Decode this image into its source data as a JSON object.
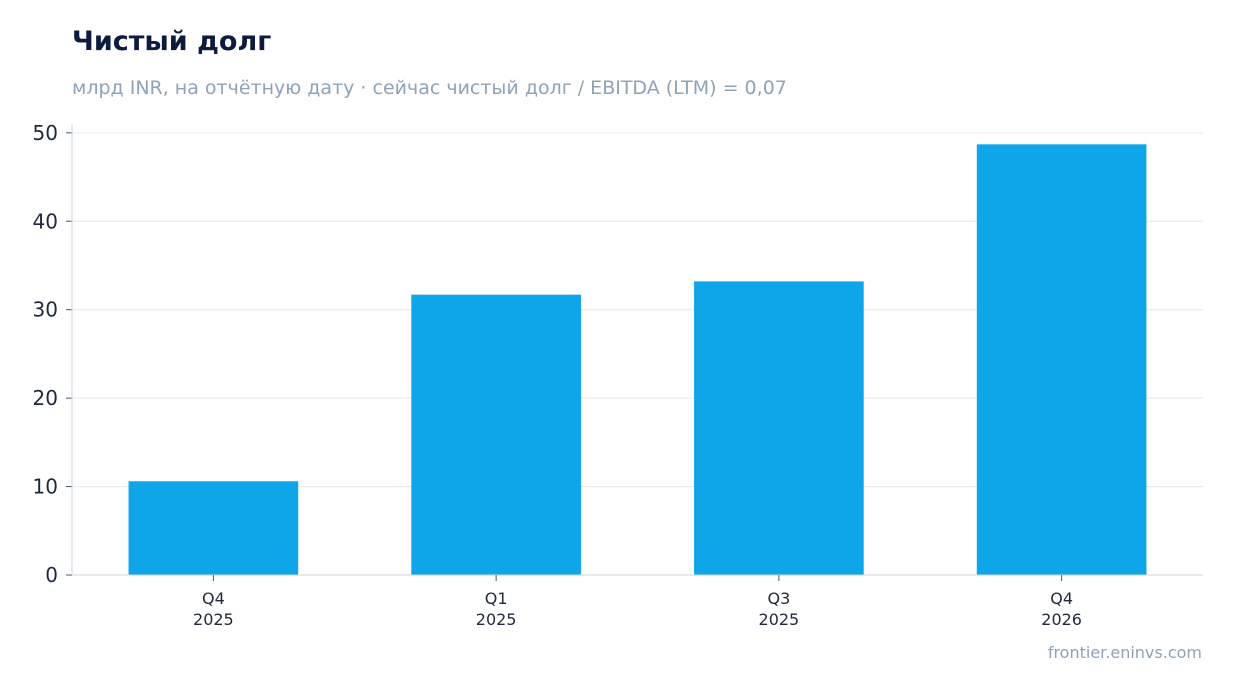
{
  "chart_data": {
    "type": "bar",
    "title": "Чистый долг",
    "subtitle": "млрд INR, на отчётную дату · сейчас чистый долг / EBITDA (LTM) = 0,07",
    "categories": [
      {
        "quarter": "Q4",
        "year": "2025"
      },
      {
        "quarter": "Q1",
        "year": "2025"
      },
      {
        "quarter": "Q3",
        "year": "2025"
      },
      {
        "quarter": "Q4",
        "year": "2026"
      }
    ],
    "values": [
      10.6,
      31.7,
      33.2,
      48.7
    ],
    "ylim": [
      0,
      51
    ],
    "yticks": [
      "0",
      "10",
      "20",
      "30",
      "40",
      "50"
    ],
    "grid": true,
    "legend": "none",
    "bar_color": "#0ea5e9",
    "grid_color": "#e2e8f0",
    "axis_color": "#cbd5e1"
  },
  "footer": {
    "source": "frontier.eninvs.com"
  }
}
